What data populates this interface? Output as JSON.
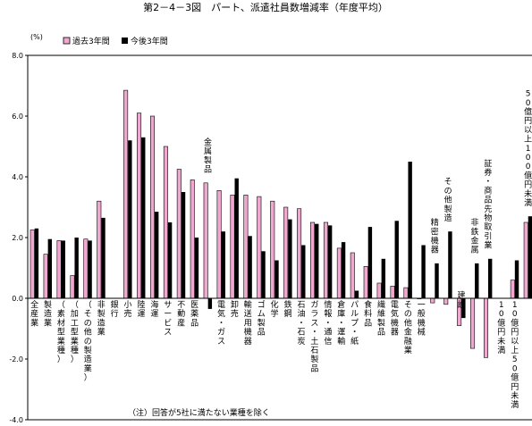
{
  "chart_data": {
    "type": "bar",
    "title": "第2－4－3図　パート、派遣社員数増減率（年度平均）",
    "ylabel": "(%)",
    "ylim": [
      -4.0,
      8.0
    ],
    "yticks": [
      "8.0",
      "6.0",
      "4.0",
      "2.0",
      "0.0",
      "-2.0",
      "-4.0"
    ],
    "grid": false,
    "legend_position": "top-left",
    "note": "（注）回答が5社に満たない業種を除く",
    "categories": [
      "全産業",
      "製造業",
      "（素材型業種）",
      "（加工型業種）",
      "（その他の製造業）",
      "非製造業",
      "銀行",
      "小売",
      "陸運",
      "海運",
      "サービス",
      "不動産",
      "医薬品",
      "金属製品",
      "電気・ガス",
      "卸売",
      "輸送用機器",
      "ゴム製品",
      "化学",
      "鉄鋼",
      "石油・石炭",
      "ガラス・土石製品",
      "情報・通信",
      "倉庫・運輸",
      "パルプ・紙",
      "食料品",
      "繊維製品",
      "電気機器",
      "その他金融業",
      "一般機械",
      "精密機器",
      "その他製造",
      "建設",
      "非鉄金属",
      "証券・商品先物取引業",
      "10億円未満",
      "10億円以上50億円未満",
      "50億円以上100億円未満",
      "100億円以上"
    ],
    "series": [
      {
        "name": "過去3年間",
        "color": "#f0a8d0",
        "values": [
          2.25,
          1.45,
          1.9,
          0.75,
          1.95,
          3.2,
          null,
          6.85,
          6.1,
          6.0,
          5.0,
          4.25,
          3.9,
          3.8,
          3.55,
          3.4,
          3.4,
          3.35,
          3.2,
          3.0,
          2.95,
          2.5,
          2.5,
          1.65,
          1.5,
          1.05,
          0.5,
          0.4,
          0.35,
          0.0,
          -0.15,
          -0.2,
          -0.9,
          -1.65,
          -1.95,
          null,
          0.6,
          2.5,
          2.2
        ]
      },
      {
        "name": "今後3年間",
        "color": "#000000",
        "values": [
          2.3,
          1.95,
          1.9,
          2.0,
          1.9,
          2.65,
          null,
          5.2,
          5.3,
          2.85,
          2.5,
          3.5,
          2.0,
          -0.35,
          2.2,
          3.95,
          2.05,
          1.55,
          1.25,
          2.6,
          1.75,
          2.45,
          2.4,
          1.85,
          0.25,
          2.35,
          1.3,
          2.55,
          4.5,
          1.75,
          1.15,
          2.2,
          -0.65,
          1.15,
          1.3,
          null,
          1.25,
          2.7,
          1.9
        ]
      }
    ]
  }
}
